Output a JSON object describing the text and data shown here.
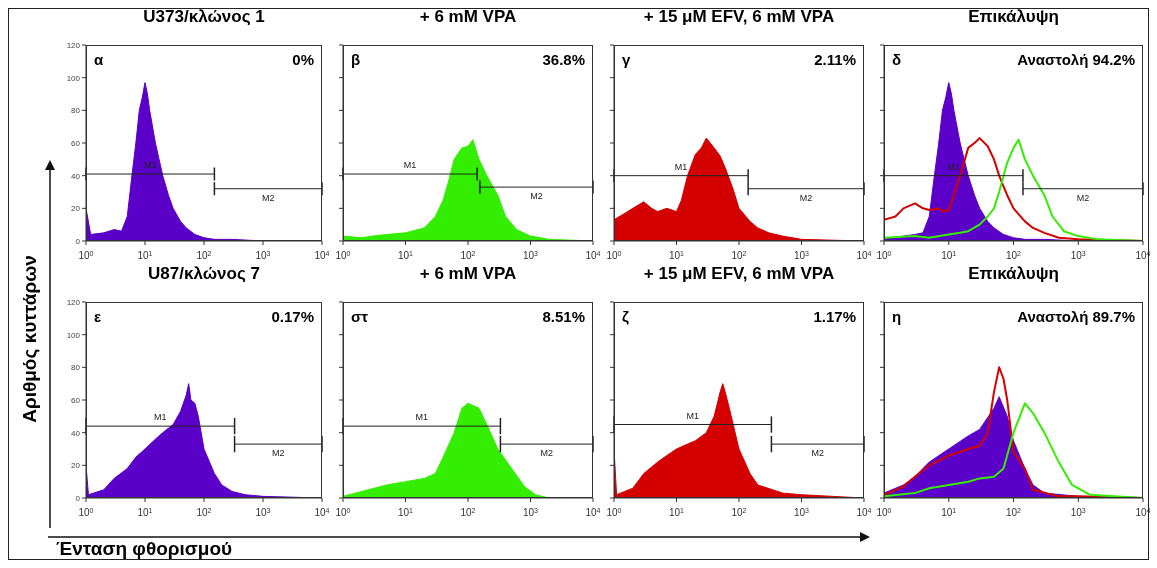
{
  "chart_data": [
    {
      "type": "area",
      "title": "U373/κλώνος 1",
      "annotations": [
        "α",
        "0%"
      ],
      "xlim": [
        1,
        10000
      ],
      "log": "x",
      "ylim": [
        0,
        120
      ],
      "yticks": [
        0,
        20,
        40,
        60,
        80,
        100,
        120
      ],
      "xticks": [
        {
          "value": 1,
          "label": "10$^{0}$"
        },
        {
          "value": 10,
          "label": "10$^{1}$"
        },
        {
          "value": 100,
          "label": "10$^{2}$"
        },
        {
          "value": 1000,
          "label": "10$^{3}$"
        },
        {
          "value": 10000,
          "label": "10$^{4}$"
        }
      ],
      "grid": false,
      "legend": false,
      "series": [
        {
          "type": "area",
          "color": "#5a00c8",
          "x": [
            1,
            1.2,
            2,
            3,
            4,
            5,
            6,
            7,
            8,
            9,
            10,
            11,
            12,
            15,
            20,
            25,
            30,
            40,
            50,
            70,
            100,
            150,
            300,
            1000,
            10000
          ],
          "values": [
            20,
            4,
            5,
            7,
            6,
            15,
            40,
            60,
            80,
            88,
            97,
            90,
            80,
            60,
            40,
            28,
            20,
            12,
            8,
            4,
            2,
            1,
            1,
            0,
            0
          ]
        },
        {
          "type": "line",
          "name": "M1",
          "color": "#222222",
          "x": [
            1,
            150
          ],
          "values": [
            41,
            41
          ],
          "errors": [
            4,
            4
          ]
        },
        {
          "type": "line",
          "name": "M2",
          "color": "#222222",
          "x": [
            150,
            10000
          ],
          "values": [
            32,
            32
          ],
          "errors": [
            4,
            4
          ]
        }
      ]
    },
    {
      "type": "area",
      "title": "+ 6 mM VPA",
      "annotations": [
        "β",
        "36.8%"
      ],
      "xlim": [
        1,
        10000
      ],
      "log": "x",
      "ylim": [
        0,
        120
      ],
      "yticks": [
        0,
        20,
        40,
        60,
        80,
        100,
        120
      ],
      "tick_labels": "x",
      "xticks": [
        {
          "value": 1,
          "label": "10$^{0}$"
        },
        {
          "value": 10,
          "label": "10$^{1}$"
        },
        {
          "value": 100,
          "label": "10$^{2}$"
        },
        {
          "value": 1000,
          "label": "10$^{3}$"
        },
        {
          "value": 10000,
          "label": "10$^{4}$"
        }
      ],
      "grid": false,
      "legend": false,
      "series": [
        {
          "type": "area",
          "color": "#33ee00",
          "x": [
            1,
            2,
            3,
            5,
            10,
            20,
            30,
            40,
            50,
            60,
            80,
            100,
            120,
            150,
            200,
            300,
            400,
            600,
            1000,
            2000,
            10000
          ],
          "values": [
            3,
            2,
            3,
            4,
            5,
            8,
            15,
            25,
            38,
            50,
            57,
            58,
            62,
            50,
            40,
            28,
            15,
            7,
            3,
            1,
            0
          ]
        },
        {
          "type": "line",
          "name": "M1",
          "color": "#222222",
          "x": [
            1,
            140
          ],
          "values": [
            41,
            41
          ],
          "errors": [
            4,
            4
          ]
        },
        {
          "type": "line",
          "name": "M2",
          "color": "#222222",
          "x": [
            155,
            10000
          ],
          "values": [
            33,
            33
          ],
          "errors": [
            4,
            4
          ]
        }
      ]
    },
    {
      "type": "area",
      "title": "+ 15 μM EFV, 6 mM VPA",
      "annotations": [
        "γ",
        "2.11%"
      ],
      "xlim": [
        1,
        10000
      ],
      "log": "x",
      "ylim": [
        0,
        120
      ],
      "yticks": [
        0,
        20,
        40,
        60,
        80,
        100,
        120
      ],
      "tick_labels": "x",
      "xticks": [
        {
          "value": 1,
          "label": "10$^{0}$"
        },
        {
          "value": 10,
          "label": "10$^{1}$"
        },
        {
          "value": 100,
          "label": "10$^{2}$"
        },
        {
          "value": 1000,
          "label": "10$^{3}$"
        },
        {
          "value": 10000,
          "label": "10$^{4}$"
        }
      ],
      "grid": false,
      "legend": false,
      "series": [
        {
          "type": "area",
          "color": "#d40000",
          "x": [
            1,
            1.5,
            2,
            3,
            4,
            5,
            7,
            10,
            12,
            15,
            20,
            25,
            30,
            40,
            50,
            60,
            80,
            100,
            150,
            200,
            300,
            500,
            1000,
            10000
          ],
          "values": [
            13,
            17,
            20,
            24,
            20,
            18,
            20,
            18,
            25,
            40,
            53,
            57,
            63,
            57,
            52,
            45,
            32,
            20,
            12,
            8,
            5,
            3,
            1,
            0
          ]
        },
        {
          "type": "line",
          "name": "M1",
          "color": "#222222",
          "x": [
            1,
            140
          ],
          "values": [
            40,
            40
          ],
          "errors": [
            4,
            4
          ]
        },
        {
          "type": "line",
          "name": "M2",
          "color": "#222222",
          "x": [
            140,
            10000
          ],
          "values": [
            32,
            32
          ],
          "errors": [
            4,
            4
          ]
        }
      ]
    },
    {
      "type": "area",
      "title": "Επικάλυψη",
      "annotations": [
        "δ",
        "Αναστολή 94.2%"
      ],
      "xlim": [
        1,
        10000
      ],
      "log": "x",
      "ylim": [
        0,
        120
      ],
      "yticks": [
        0,
        20,
        40,
        60,
        80,
        100,
        120
      ],
      "tick_labels": "x",
      "xticks": [
        {
          "value": 1,
          "label": "10$^{0}$"
        },
        {
          "value": 10,
          "label": "10$^{1}$"
        },
        {
          "value": 100,
          "label": "10$^{2}$"
        },
        {
          "value": 1000,
          "label": "10$^{3}$"
        },
        {
          "value": 10000,
          "label": "10$^{4}$"
        }
      ],
      "grid": false,
      "legend": false,
      "series": [
        {
          "type": "area",
          "color": "#5a00c8",
          "x": [
            1,
            2,
            3,
            4,
            5,
            6,
            7,
            8,
            9,
            10,
            11,
            12,
            15,
            20,
            25,
            30,
            40,
            50,
            70,
            100,
            150,
            300,
            1000,
            10000
          ],
          "values": [
            1,
            3,
            4,
            5,
            15,
            40,
            60,
            80,
            88,
            97,
            90,
            80,
            60,
            40,
            28,
            20,
            12,
            8,
            4,
            2,
            1,
            1,
            0,
            0
          ]
        },
        {
          "type": "line",
          "color": "#d40000",
          "x": [
            1,
            1.5,
            2,
            3,
            4,
            5,
            7,
            8,
            10,
            12,
            15,
            20,
            25,
            30,
            40,
            50,
            60,
            80,
            100,
            150,
            200,
            300,
            500,
            1000,
            10000
          ],
          "values": [
            13,
            15,
            20,
            23,
            20,
            19,
            20,
            18,
            19,
            28,
            40,
            57,
            60,
            63,
            58,
            50,
            40,
            28,
            20,
            12,
            8,
            5,
            2,
            1,
            0
          ]
        },
        {
          "type": "line",
          "color": "#33ee00",
          "x": [
            1,
            3,
            5,
            10,
            15,
            20,
            30,
            40,
            50,
            60,
            80,
            100,
            120,
            150,
            200,
            300,
            400,
            600,
            1000,
            2000,
            10000
          ],
          "values": [
            2,
            3,
            2,
            4,
            5,
            6,
            10,
            15,
            20,
            30,
            48,
            57,
            62,
            50,
            40,
            28,
            15,
            6,
            3,
            1,
            0
          ]
        },
        {
          "type": "line",
          "name": "M1",
          "color": "#222222",
          "x": [
            1,
            140
          ],
          "values": [
            40,
            40
          ],
          "errors": [
            4,
            4
          ]
        },
        {
          "type": "line",
          "name": "M2",
          "color": "#222222",
          "x": [
            140,
            10000
          ],
          "values": [
            32,
            32
          ],
          "errors": [
            4,
            4
          ]
        }
      ]
    },
    {
      "type": "area",
      "title": "U87/κλώνος 7",
      "annotations": [
        "ε",
        "0.17%"
      ],
      "ylabel": "Αριθμός κυττάρων",
      "xlabel": "Ένταση φθορισμού",
      "xlim": [
        1,
        10000
      ],
      "log": "x",
      "ylim": [
        0,
        120
      ],
      "yticks": [
        0,
        20,
        40,
        60,
        80,
        100,
        120
      ],
      "xticks": [
        {
          "value": 1,
          "label": "10$^{0}$"
        },
        {
          "value": 10,
          "label": "10$^{1}$"
        },
        {
          "value": 100,
          "label": "10$^{2}$"
        },
        {
          "value": 1000,
          "label": "10$^{3}$"
        },
        {
          "value": 10000,
          "label": "10$^{4}$"
        }
      ],
      "grid": false,
      "legend": false,
      "series": [
        {
          "type": "area",
          "color": "#5a00c8",
          "x": [
            1,
            1.1,
            2,
            3,
            5,
            7,
            10,
            15,
            20,
            30,
            40,
            50,
            55,
            60,
            70,
            80,
            100,
            150,
            200,
            300,
            500,
            1000,
            10000
          ],
          "values": [
            20,
            2,
            5,
            12,
            18,
            25,
            30,
            36,
            40,
            45,
            53,
            63,
            70,
            60,
            58,
            50,
            30,
            15,
            8,
            4,
            2,
            1,
            0
          ]
        },
        {
          "type": "line",
          "name": "M1",
          "color": "#222222",
          "x": [
            1,
            330
          ],
          "values": [
            44,
            44
          ],
          "errors": [
            5,
            5
          ]
        },
        {
          "type": "line",
          "name": "M2",
          "color": "#222222",
          "x": [
            330,
            10000
          ],
          "values": [
            33,
            33
          ],
          "errors": [
            5,
            5
          ]
        }
      ]
    },
    {
      "type": "area",
      "title": "+ 6 mM VPA",
      "annotations": [
        "στ",
        "8.51%"
      ],
      "xlim": [
        1,
        10000
      ],
      "log": "x",
      "ylim": [
        0,
        120
      ],
      "yticks": [
        0,
        20,
        40,
        60,
        80,
        100,
        120
      ],
      "tick_labels": "x",
      "xticks": [
        {
          "value": 1,
          "label": "10$^{0}$"
        },
        {
          "value": 10,
          "label": "10$^{1}$"
        },
        {
          "value": 100,
          "label": "10$^{2}$"
        },
        {
          "value": 1000,
          "label": "10$^{3}$"
        },
        {
          "value": 10000,
          "label": "10$^{4}$"
        }
      ],
      "grid": false,
      "legend": false,
      "series": [
        {
          "type": "area",
          "color": "#33ee00",
          "x": [
            1,
            2,
            5,
            10,
            20,
            30,
            40,
            60,
            80,
            100,
            150,
            200,
            300,
            500,
            800,
            1200,
            2000,
            10000
          ],
          "values": [
            1,
            4,
            8,
            10,
            12,
            15,
            25,
            40,
            55,
            58,
            55,
            45,
            30,
            18,
            7,
            2,
            0,
            0
          ]
        },
        {
          "type": "line",
          "name": "M1",
          "color": "#222222",
          "x": [
            1,
            330
          ],
          "values": [
            44,
            44
          ],
          "errors": [
            5,
            5
          ]
        },
        {
          "type": "line",
          "name": "M2",
          "color": "#222222",
          "x": [
            330,
            10000
          ],
          "values": [
            33,
            33
          ],
          "errors": [
            5,
            5
          ]
        }
      ]
    },
    {
      "type": "area",
      "title": "+ 15 μM EFV, 6 mM VPA",
      "annotations": [
        "ζ",
        "1.17%"
      ],
      "xlim": [
        1,
        10000
      ],
      "log": "x",
      "ylim": [
        0,
        120
      ],
      "yticks": [
        0,
        20,
        40,
        60,
        80,
        100,
        120
      ],
      "tick_labels": "x",
      "xticks": [
        {
          "value": 1,
          "label": "10$^{0}$"
        },
        {
          "value": 10,
          "label": "10$^{1}$"
        },
        {
          "value": 100,
          "label": "10$^{2}$"
        },
        {
          "value": 1000,
          "label": "10$^{3}$"
        },
        {
          "value": 10000,
          "label": "10$^{4}$"
        }
      ],
      "grid": false,
      "legend": false,
      "series": [
        {
          "type": "area",
          "color": "#d40000",
          "x": [
            1,
            1.1,
            2,
            3,
            5,
            7,
            10,
            15,
            20,
            30,
            40,
            50,
            55,
            60,
            70,
            100,
            150,
            200,
            500,
            1000,
            10000
          ],
          "values": [
            30,
            2,
            6,
            15,
            22,
            26,
            30,
            33,
            35,
            40,
            50,
            65,
            70,
            65,
            55,
            30,
            15,
            8,
            3,
            2,
            0
          ]
        },
        {
          "type": "line",
          "name": "M1",
          "color": "#222222",
          "x": [
            1,
            330
          ],
          "values": [
            45,
            45
          ],
          "errors": [
            5,
            5
          ]
        },
        {
          "type": "line",
          "name": "M2",
          "color": "#222222",
          "x": [
            330,
            10000
          ],
          "values": [
            33,
            33
          ],
          "errors": [
            5,
            5
          ]
        }
      ]
    },
    {
      "type": "area",
      "title": "Επικάλυψη",
      "annotations": [
        "η",
        "Αναστολή 89.7%"
      ],
      "xlim": [
        1,
        10000
      ],
      "log": "x",
      "ylim": [
        0,
        120
      ],
      "yticks": [
        0,
        20,
        40,
        60,
        80,
        100,
        120
      ],
      "tick_labels": "x",
      "xticks": [
        {
          "value": 1,
          "label": "10$^{0}$"
        },
        {
          "value": 10,
          "label": "10$^{1}$"
        },
        {
          "value": 100,
          "label": "10$^{2}$"
        },
        {
          "value": 1000,
          "label": "10$^{3}$"
        },
        {
          "value": 10000,
          "label": "10$^{4}$"
        }
      ],
      "grid": false,
      "legend": false,
      "series": [
        {
          "type": "area",
          "color": "#5a00c8",
          "x": [
            1,
            2,
            3,
            5,
            10,
            20,
            30,
            50,
            60,
            80,
            100,
            150,
            200,
            300,
            1000,
            10000
          ],
          "values": [
            3,
            8,
            13,
            22,
            30,
            38,
            42,
            55,
            62,
            50,
            35,
            18,
            8,
            3,
            1,
            0
          ]
        },
        {
          "type": "line",
          "color": "#d40000",
          "x": [
            1,
            2,
            3,
            5,
            10,
            20,
            30,
            40,
            50,
            60,
            70,
            80,
            100,
            150,
            200,
            500,
            1000,
            10000
          ],
          "values": [
            2,
            7,
            13,
            20,
            26,
            30,
            32,
            40,
            65,
            80,
            73,
            60,
            28,
            18,
            5,
            1,
            1,
            0
          ]
        },
        {
          "type": "line",
          "color": "#33ee00",
          "x": [
            1,
            3,
            5,
            10,
            20,
            30,
            50,
            70,
            100,
            150,
            200,
            300,
            500,
            800,
            1500,
            10000
          ],
          "values": [
            1,
            3,
            6,
            8,
            10,
            12,
            13,
            18,
            40,
            58,
            52,
            40,
            22,
            8,
            2,
            0
          ]
        }
      ]
    }
  ]
}
